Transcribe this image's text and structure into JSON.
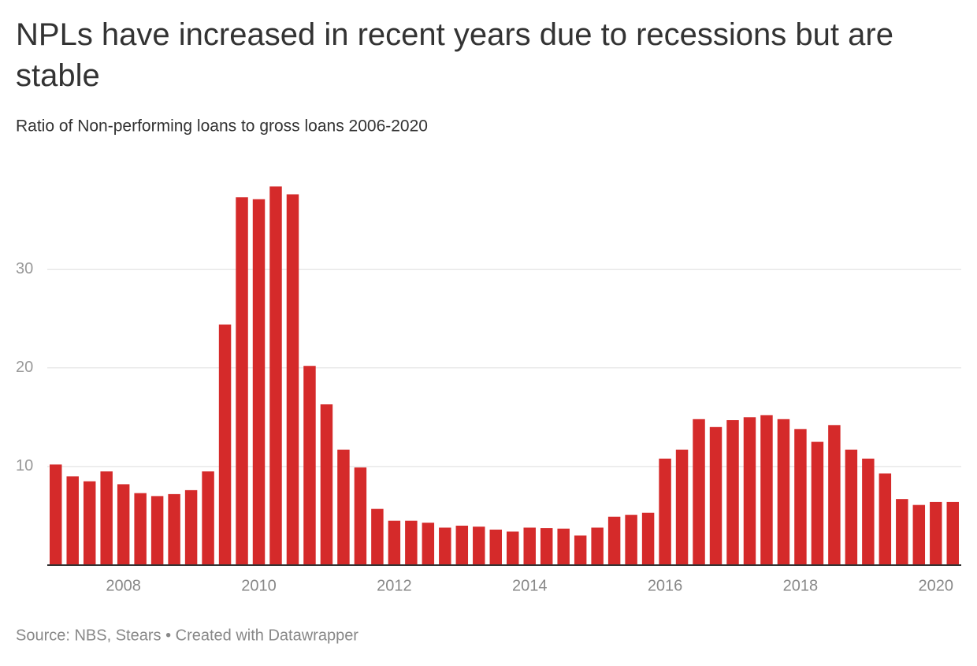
{
  "chart_data": {
    "type": "bar",
    "title": "NPLs have increased in recent years due to recessions but are stable",
    "subtitle": "Ratio of Non-performing loans to gross loans 2006-2020",
    "source": "Source: NBS, Stears • Created with Datawrapper",
    "categories": [
      null,
      null,
      null,
      null,
      "2008",
      null,
      null,
      null,
      null,
      null,
      null,
      null,
      "2010",
      null,
      null,
      null,
      null,
      null,
      null,
      null,
      "2012",
      null,
      null,
      null,
      null,
      null,
      null,
      null,
      "2014",
      null,
      null,
      null,
      null,
      null,
      null,
      null,
      "2016",
      null,
      null,
      null,
      null,
      null,
      null,
      null,
      "2018",
      null,
      null,
      null,
      null,
      null,
      null,
      null,
      "2020",
      null
    ],
    "values": [
      10.2,
      9.0,
      8.5,
      9.5,
      8.2,
      7.3,
      7.0,
      7.2,
      7.6,
      9.5,
      24.4,
      37.3,
      37.1,
      38.4,
      37.6,
      20.2,
      16.3,
      11.7,
      9.9,
      5.7,
      4.5,
      4.5,
      4.3,
      3.8,
      4.0,
      3.9,
      3.6,
      3.4,
      3.8,
      3.75,
      3.7,
      3.0,
      3.8,
      4.9,
      5.1,
      5.3,
      10.8,
      11.7,
      14.8,
      14.0,
      14.7,
      15.0,
      15.2,
      14.8,
      13.8,
      12.5,
      14.2,
      11.7,
      10.8,
      9.3,
      6.7,
      6.1,
      6.4,
      6.4
    ],
    "color": "#d52a2a",
    "ylim": [
      0,
      39
    ],
    "yticks": [
      10,
      20,
      30
    ],
    "grid": true
  }
}
